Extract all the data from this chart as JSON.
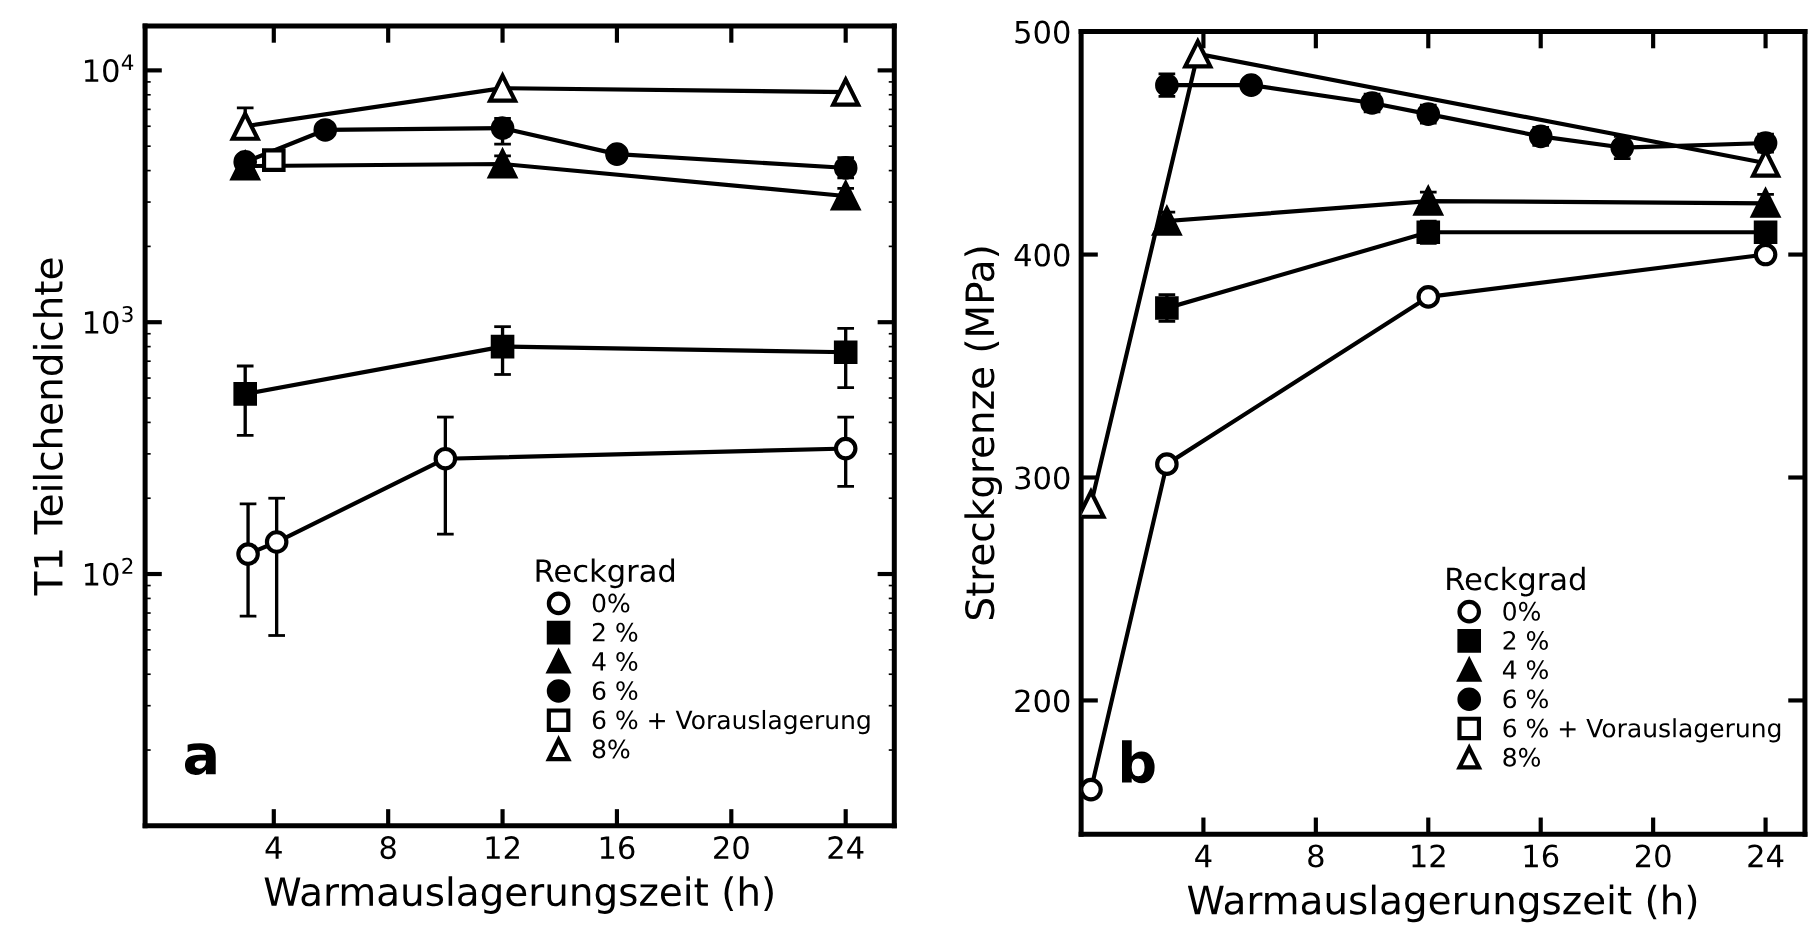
{
  "chart_data": [
    {
      "type": "line",
      "ylabel": "T1 Teilchendichte",
      "xlabel": "Warmauslagerungszeit (h)",
      "legend_title": "Reckgrad",
      "legend": "bottom right",
      "log": true,
      "grid": false,
      "xlim": [
        -0.5,
        25.7
      ],
      "xticks": [
        4,
        8,
        12,
        16,
        20,
        24
      ],
      "ylim": [
        10,
        15000
      ],
      "yticks": [
        {
          "value": 100,
          "label": "10$^{2}$"
        },
        {
          "value": 1000,
          "label": "10$^{3}$"
        },
        {
          "value": 10000,
          "label": "10$^{4}$"
        }
      ],
      "annotations": [
        "a"
      ],
      "series": [
        {
          "name": "0%",
          "color": "#ffffff",
          "marker": "circle",
          "x": [
            3.1,
            4.1,
            10,
            24
          ],
          "values": [
            120,
            134,
            287,
            315
          ],
          "errors": [
            [
              68,
              190
            ],
            [
              57,
              200
            ],
            [
              144,
              420
            ],
            [
              223,
              420
            ]
          ]
        },
        {
          "name": "2 %",
          "color": "#000000",
          "marker": "square",
          "x": [
            3,
            12,
            24
          ],
          "values": [
            519,
            800,
            760
          ],
          "errors": [
            [
              355,
              670
            ],
            [
              620,
              960
            ],
            [
              550,
              945
            ]
          ]
        },
        {
          "name": "4 %",
          "color": "#000000",
          "marker": "triangle",
          "x": [
            3,
            12,
            24
          ],
          "values": [
            4170,
            4250,
            3170
          ],
          "errors": [
            [
              3800,
              4580
            ],
            [
              3900,
              4580
            ],
            [
              2900,
              3400
            ]
          ]
        },
        {
          "name": "6 %",
          "color": "#000000",
          "marker": "circle",
          "x": [
            3,
            5.8,
            12,
            16,
            24
          ],
          "values": [
            4330,
            5800,
            5900,
            4650,
            4100
          ],
          "errors": [
            null,
            null,
            [
              5100,
              6450
            ],
            null,
            [
              3740,
              4500
            ]
          ]
        },
        {
          "name": "6 % + Vorauslagerung",
          "type": "scatter",
          "color": "#ffffff",
          "marker": "square",
          "x": [
            4
          ],
          "values": [
            4400
          ]
        },
        {
          "name": "8%",
          "color": "#ffffff",
          "marker": "triangle",
          "x": [
            3,
            12,
            24
          ],
          "values": [
            6000,
            8500,
            8200
          ],
          "errors": [
            [
              5400,
              7100
            ],
            null,
            null
          ]
        }
      ]
    },
    {
      "type": "line",
      "ylabel": "Streckgrenze (MPa)",
      "xlabel": "Warmauslagerungszeit (h)",
      "legend_title": "Reckgrad",
      "legend": "bottom right",
      "grid": false,
      "xlim": [
        -0.35,
        25.4
      ],
      "xticks": [
        4,
        8,
        12,
        16,
        20,
        24
      ],
      "ylim": [
        140,
        500
      ],
      "yticks": [
        200,
        300,
        400,
        500
      ],
      "annotations": [
        "b"
      ],
      "series": [
        {
          "name": "0%",
          "color": "#ffffff",
          "marker": "circle",
          "x": [
            0,
            2.7,
            12,
            24
          ],
          "values": [
            160,
            306,
            381,
            400
          ]
        },
        {
          "name": "2 %",
          "color": "#000000",
          "marker": "square",
          "x": [
            2.7,
            12,
            24
          ],
          "values": [
            376,
            410,
            410
          ],
          "errors": [
            6,
            5,
            null
          ]
        },
        {
          "name": "4 %",
          "color": "#000000",
          "marker": "triangle",
          "x": [
            2.7,
            12,
            24
          ],
          "values": [
            415,
            424,
            423
          ],
          "errors": [
            4,
            4,
            4
          ]
        },
        {
          "name": "6 %",
          "color": "#000000",
          "marker": "circle",
          "x": [
            2.7,
            5.7,
            10,
            12,
            16,
            18.9,
            24
          ],
          "values": [
            476,
            476,
            468,
            463,
            453,
            448,
            450
          ],
          "errors": [
            5,
            3,
            4,
            4,
            4,
            5,
            4
          ]
        },
        {
          "name": "6 % + Vorauslagerung",
          "type": "scatter",
          "color": "#ffffff",
          "marker": "square"
        },
        {
          "name": "8%",
          "color": "#ffffff",
          "marker": "triangle",
          "x": [
            0,
            3.8,
            24
          ],
          "values": [
            288,
            490,
            441
          ]
        }
      ]
    }
  ]
}
